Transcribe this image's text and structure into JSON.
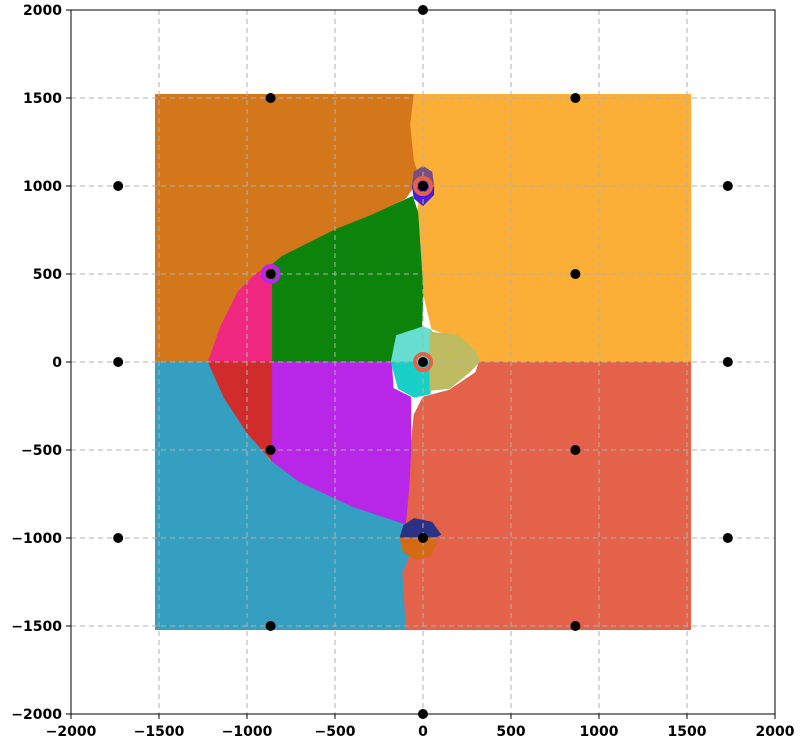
{
  "chart_data": {
    "type": "scatter",
    "title": "",
    "xlabel": "",
    "ylabel": "",
    "xlim": [
      -2000,
      2000
    ],
    "ylim": [
      -2000,
      2000
    ],
    "grid": true,
    "x_ticks": [
      -2000,
      -1500,
      -1000,
      -500,
      0,
      500,
      1000,
      1500,
      2000
    ],
    "y_ticks": [
      -2000,
      -1500,
      -1000,
      -500,
      0,
      500,
      1000,
      1500,
      2000
    ],
    "x_tick_labels": [
      "−2000",
      "−1500",
      "−1000",
      "−500",
      "0",
      "500",
      "1000",
      "1500",
      "2000"
    ],
    "y_tick_labels": [
      "−2000",
      "−1500",
      "−1000",
      "−500",
      "0",
      "500",
      "1000",
      "1500",
      "2000"
    ],
    "points": [
      {
        "x": 0,
        "y": 2000
      },
      {
        "x": 0,
        "y": -2000
      },
      {
        "x": -866,
        "y": 1500
      },
      {
        "x": 866,
        "y": 1500
      },
      {
        "x": -866,
        "y": -1500
      },
      {
        "x": 866,
        "y": -1500
      },
      {
        "x": -1732,
        "y": 1000
      },
      {
        "x": 1732,
        "y": 1000
      },
      {
        "x": -1732,
        "y": -1000
      },
      {
        "x": 1732,
        "y": -1000
      },
      {
        "x": -1732,
        "y": 0
      },
      {
        "x": 1732,
        "y": 0
      },
      {
        "x": 0,
        "y": 1000
      },
      {
        "x": 0,
        "y": -1000
      },
      {
        "x": -866,
        "y": 500
      },
      {
        "x": 866,
        "y": 500
      },
      {
        "x": -866,
        "y": -500
      },
      {
        "x": 866,
        "y": -500
      },
      {
        "x": 0,
        "y": 0
      }
    ],
    "point_color": "#000000",
    "regions": [
      {
        "color": "#d4761a",
        "polygon": [
          [
            -1520,
            1520
          ],
          [
            -50,
            1520
          ],
          [
            -70,
            1350
          ],
          [
            -50,
            1150
          ],
          [
            -30,
            1080
          ],
          [
            -50,
            1000
          ],
          [
            -100,
            930
          ],
          [
            -300,
            830
          ],
          [
            -500,
            750
          ],
          [
            -700,
            650
          ],
          [
            -800,
            600
          ],
          [
            -860,
            550
          ],
          [
            -900,
            500
          ],
          [
            -1000,
            450
          ],
          [
            -1100,
            300
          ],
          [
            -1150,
            150
          ],
          [
            -1200,
            0
          ],
          [
            -1520,
            0
          ]
        ]
      },
      {
        "color": "#fbaf37",
        "polygon": [
          [
            -50,
            1520
          ],
          [
            1520,
            1520
          ],
          [
            1520,
            0
          ],
          [
            320,
            0
          ],
          [
            260,
            80
          ],
          [
            150,
            150
          ],
          [
            50,
            190
          ],
          [
            0,
            400
          ],
          [
            -20,
            600
          ],
          [
            -30,
            850
          ],
          [
            -20,
            950
          ],
          [
            50,
            1100
          ],
          [
            -30,
            1080
          ],
          [
            -50,
            1150
          ],
          [
            -70,
            1350
          ]
        ]
      },
      {
        "color": "#e4624a",
        "polygon": [
          [
            320,
            0
          ],
          [
            1520,
            0
          ],
          [
            1520,
            -1520
          ],
          [
            -100,
            -1520
          ],
          [
            -120,
            -1200
          ],
          [
            -80,
            -1100
          ],
          [
            -120,
            -1000
          ],
          [
            -120,
            -800
          ],
          [
            -80,
            -600
          ],
          [
            -50,
            -300
          ],
          [
            0,
            -200
          ],
          [
            150,
            -160
          ],
          [
            300,
            -60
          ]
        ]
      },
      {
        "color": "#359fc1",
        "polygon": [
          [
            -1520,
            0
          ],
          [
            -1220,
            0
          ],
          [
            -1130,
            -200
          ],
          [
            -1000,
            -400
          ],
          [
            -870,
            -560
          ],
          [
            -700,
            -680
          ],
          [
            -400,
            -820
          ],
          [
            -100,
            -920
          ],
          [
            -120,
            -1000
          ],
          [
            -80,
            -1100
          ],
          [
            -120,
            -1200
          ],
          [
            -100,
            -1520
          ],
          [
            -1520,
            -1520
          ]
        ]
      },
      {
        "color": "#0c840c",
        "polygon": [
          [
            -860,
            0
          ],
          [
            -180,
            0
          ],
          [
            -160,
            100
          ],
          [
            -10,
            150
          ],
          [
            0,
            400
          ],
          [
            -30,
            850
          ],
          [
            -60,
            940
          ],
          [
            -300,
            830
          ],
          [
            -500,
            750
          ],
          [
            -700,
            650
          ],
          [
            -800,
            600
          ],
          [
            -860,
            550
          ]
        ]
      },
      {
        "color": "#b826e8",
        "polygon": [
          [
            -860,
            0
          ],
          [
            -180,
            0
          ],
          [
            -170,
            -150
          ],
          [
            -70,
            -200
          ],
          [
            -70,
            -500
          ],
          [
            -80,
            -700
          ],
          [
            -100,
            -920
          ],
          [
            -400,
            -820
          ],
          [
            -700,
            -680
          ],
          [
            -860,
            -560
          ]
        ]
      },
      {
        "color": "#f02880",
        "polygon": [
          [
            -860,
            0
          ],
          [
            -860,
            550
          ],
          [
            -950,
            500
          ],
          [
            -1050,
            400
          ],
          [
            -1150,
            200
          ],
          [
            -1220,
            0
          ]
        ]
      },
      {
        "color": "#d12c2c",
        "polygon": [
          [
            -860,
            0
          ],
          [
            -1220,
            0
          ],
          [
            -1130,
            -200
          ],
          [
            -1000,
            -400
          ],
          [
            -860,
            -560
          ]
        ]
      },
      {
        "color": "#66dfd1",
        "polygon": [
          [
            -180,
            0
          ],
          [
            -150,
            150
          ],
          [
            0,
            200
          ],
          [
            50,
            180
          ],
          [
            60,
            0
          ]
        ]
      },
      {
        "color": "#19d0c9",
        "polygon": [
          [
            -180,
            0
          ],
          [
            -140,
            -150
          ],
          [
            -50,
            -200
          ],
          [
            40,
            -180
          ],
          [
            60,
            0
          ]
        ]
      },
      {
        "color": "#bebb60",
        "polygon": [
          [
            40,
            170
          ],
          [
            200,
            150
          ],
          [
            300,
            60
          ],
          [
            320,
            0
          ],
          [
            260,
            -60
          ],
          [
            150,
            -150
          ],
          [
            40,
            -160
          ]
        ]
      },
      {
        "color": "#7a4e80",
        "polygon": [
          [
            -60,
            1000
          ],
          [
            -50,
            1080
          ],
          [
            0,
            1110
          ],
          [
            50,
            1080
          ],
          [
            60,
            1000
          ]
        ]
      },
      {
        "color": "#4b1bd6",
        "polygon": [
          [
            -60,
            1000
          ],
          [
            -50,
            930
          ],
          [
            0,
            890
          ],
          [
            60,
            950
          ],
          [
            60,
            1000
          ]
        ]
      },
      {
        "color": "#2b3185",
        "polygon": [
          [
            -130,
            -1000
          ],
          [
            -110,
            -930
          ],
          [
            -50,
            -890
          ],
          [
            50,
            -910
          ],
          [
            100,
            -980
          ],
          [
            60,
            -1000
          ]
        ]
      },
      {
        "color": "#d46a14",
        "polygon": [
          [
            -130,
            -1000
          ],
          [
            -110,
            -1080
          ],
          [
            -40,
            -1120
          ],
          [
            40,
            -1100
          ],
          [
            80,
            -1030
          ],
          [
            60,
            -1000
          ]
        ]
      }
    ],
    "rings": [
      {
        "x": 0,
        "y": 1000,
        "color": "#e4624a"
      },
      {
        "x": -866,
        "y": 500,
        "color": "#b826e8"
      },
      {
        "x": 0,
        "y": 0,
        "color": "#e4624a"
      }
    ]
  }
}
